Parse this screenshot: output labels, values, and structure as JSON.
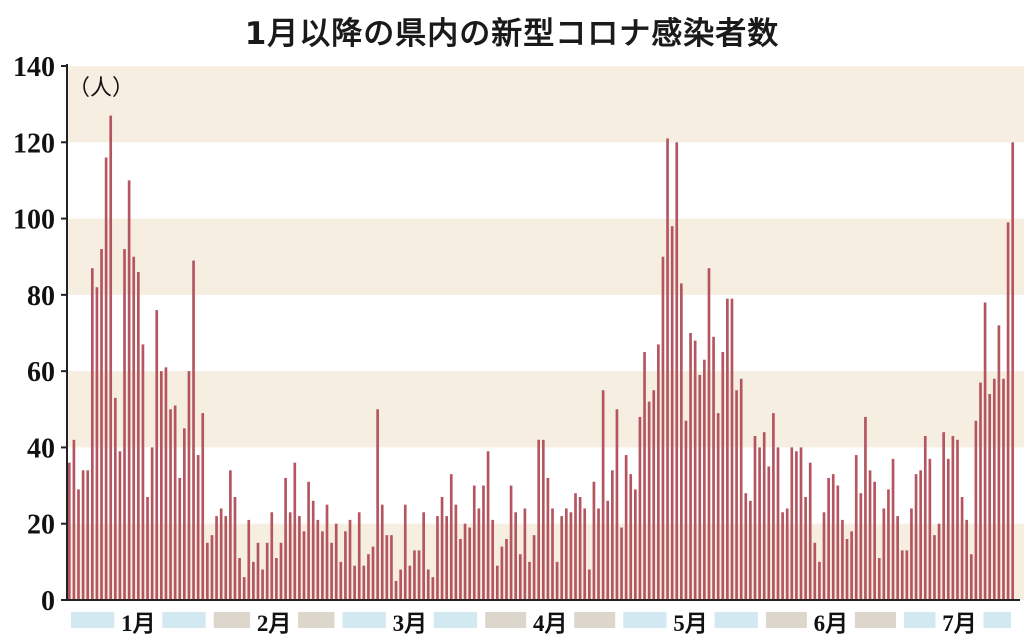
{
  "chart_data": {
    "type": "bar",
    "title": "1月以降の県内の新型コロナ感染者数",
    "unit_label": "（人）",
    "ylim": [
      0,
      140
    ],
    "yticks": [
      0,
      20,
      40,
      60,
      80,
      100,
      120,
      140
    ],
    "months": [
      "1月",
      "2月",
      "3月",
      "4月",
      "5月",
      "6月",
      "7月"
    ],
    "month_day_counts": [
      31,
      28,
      31,
      30,
      31,
      30,
      31
    ],
    "colors": {
      "bar": "#b4555f",
      "band": "#f7eee2",
      "month_blue": "#d3e9f2",
      "month_tan": "#ddd6cc"
    },
    "series": [
      {
        "values": [
          36,
          42,
          29,
          34,
          34,
          87,
          82,
          92,
          116,
          127,
          53,
          39,
          92,
          110,
          90,
          86,
          67,
          27,
          40,
          76,
          60,
          61,
          50,
          51,
          32,
          45,
          60,
          89,
          38,
          49,
          15,
          17,
          22,
          24,
          22,
          34,
          27,
          11,
          6,
          21,
          10,
          15,
          8,
          15,
          23,
          11,
          15,
          32,
          23,
          36,
          22,
          18,
          31,
          26,
          21,
          18,
          25,
          15,
          20,
          10,
          18,
          21,
          9,
          23,
          9,
          12,
          14,
          50,
          25,
          17,
          17,
          5,
          8,
          25,
          9,
          13,
          13,
          23,
          8,
          6,
          22,
          27,
          22,
          33,
          25,
          16,
          20,
          19,
          30,
          24,
          30,
          39,
          21,
          9,
          14,
          16,
          30,
          23,
          12,
          24,
          10,
          17,
          42,
          42,
          32,
          24,
          10,
          22,
          24,
          23,
          28,
          27,
          24,
          8,
          31,
          24,
          55,
          26,
          34,
          50,
          19,
          38,
          33,
          29,
          48,
          65,
          52,
          55,
          67,
          90,
          121,
          98,
          120,
          83,
          47,
          70,
          68,
          59,
          63,
          87,
          69,
          49,
          65,
          79,
          79,
          55,
          58,
          28,
          26,
          43,
          40,
          44,
          35,
          49,
          40,
          23,
          24,
          40,
          39,
          40,
          27,
          36,
          15,
          10,
          23,
          32,
          33,
          30,
          21,
          16,
          18,
          38,
          28,
          48,
          34,
          31,
          11,
          24,
          29,
          37,
          22,
          13,
          13,
          24,
          33,
          34,
          43,
          37,
          17,
          20,
          44,
          37,
          43,
          42,
          27,
          21,
          12,
          47,
          57,
          78,
          54,
          58,
          72,
          58,
          99,
          120
        ]
      }
    ]
  }
}
